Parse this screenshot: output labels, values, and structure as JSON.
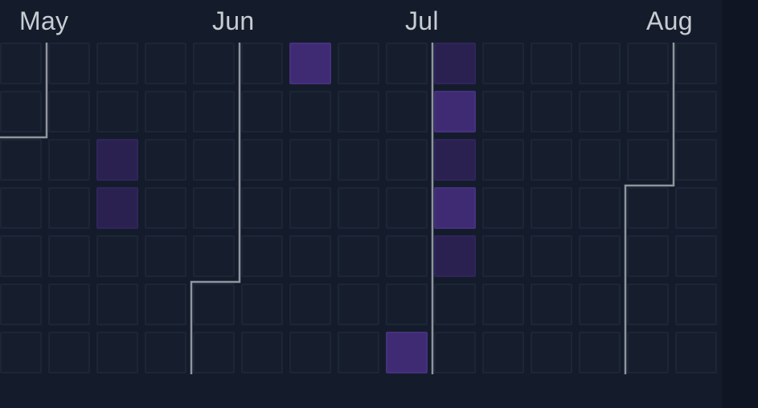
{
  "calendar": {
    "months": [
      "May",
      "Jun",
      "Jul",
      "Aug"
    ],
    "colors": {
      "background": "#141c2b",
      "empty_cell": "#161e2d",
      "level_1": "#2a2150",
      "level_2": "#3f2b73",
      "boundary_line": "#8f959e",
      "label": "#c8ccd3"
    },
    "weeks": [
      [
        0,
        0,
        0,
        0,
        0,
        0,
        0
      ],
      [
        0,
        0,
        0,
        0,
        0,
        0,
        0
      ],
      [
        0,
        0,
        1,
        1,
        0,
        0,
        0
      ],
      [
        0,
        0,
        0,
        0,
        0,
        0,
        0
      ],
      [
        0,
        0,
        0,
        0,
        0,
        0,
        0
      ],
      [
        0,
        0,
        0,
        0,
        0,
        0,
        0
      ],
      [
        2,
        0,
        0,
        0,
        0,
        0,
        0
      ],
      [
        0,
        0,
        0,
        0,
        0,
        0,
        0
      ],
      [
        0,
        0,
        0,
        0,
        0,
        0,
        2
      ],
      [
        1,
        2,
        1,
        2,
        1,
        0,
        0
      ],
      [
        0,
        0,
        0,
        0,
        0,
        0,
        0
      ],
      [
        0,
        0,
        0,
        0,
        0,
        0,
        0
      ],
      [
        0,
        0,
        0,
        0,
        0,
        0,
        0
      ],
      [
        0,
        0,
        0,
        0,
        0,
        0,
        0
      ],
      [
        0,
        0,
        0,
        0,
        0,
        0,
        0
      ]
    ]
  }
}
